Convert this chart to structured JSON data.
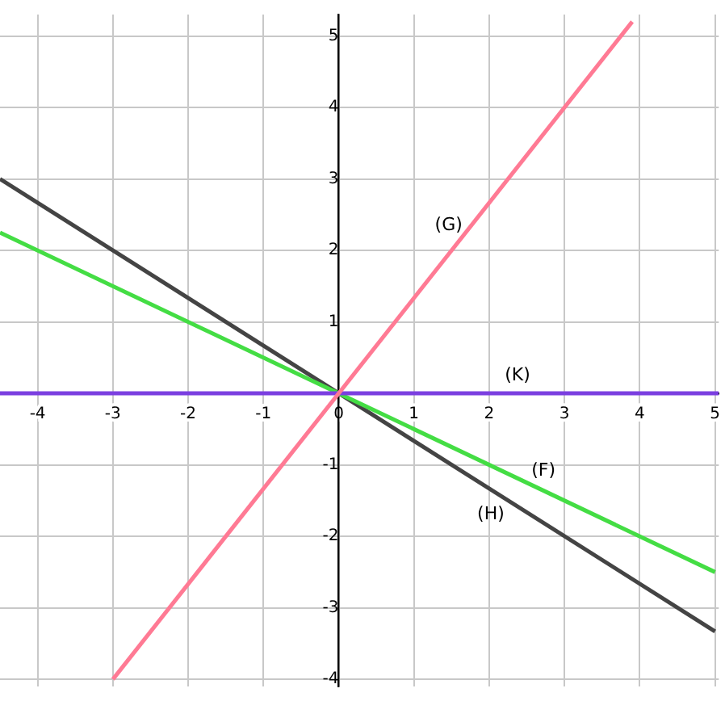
{
  "chart_data": {
    "type": "line",
    "xlim": [
      -4.5,
      5.05
    ],
    "ylim": [
      -4.1,
      5.3
    ],
    "xticks": [
      -4,
      -3,
      -2,
      -1,
      0,
      1,
      2,
      3,
      4,
      5
    ],
    "yticks": [
      -4,
      -3,
      -2,
      -1,
      1,
      2,
      3,
      4,
      5
    ],
    "grid": true,
    "legend": false,
    "marker": "none",
    "line_style": "solid",
    "series": [
      {
        "name": "(G)",
        "color": "#ff7a94",
        "x": [
          -3,
          3.9
        ],
        "values": [
          -4,
          5.2
        ]
      },
      {
        "name": "(K)",
        "color": "#7b3fe0",
        "x": [
          -4.5,
          5.05
        ],
        "values": [
          0,
          0
        ]
      },
      {
        "name": "(F)",
        "color": "#44dd44",
        "x": [
          -4.5,
          5
        ],
        "values": [
          2.25,
          -2.5
        ]
      },
      {
        "name": "(H)",
        "color": "#444444",
        "x": [
          -4.5,
          5
        ],
        "values": [
          3,
          -3.33
        ]
      }
    ]
  }
}
